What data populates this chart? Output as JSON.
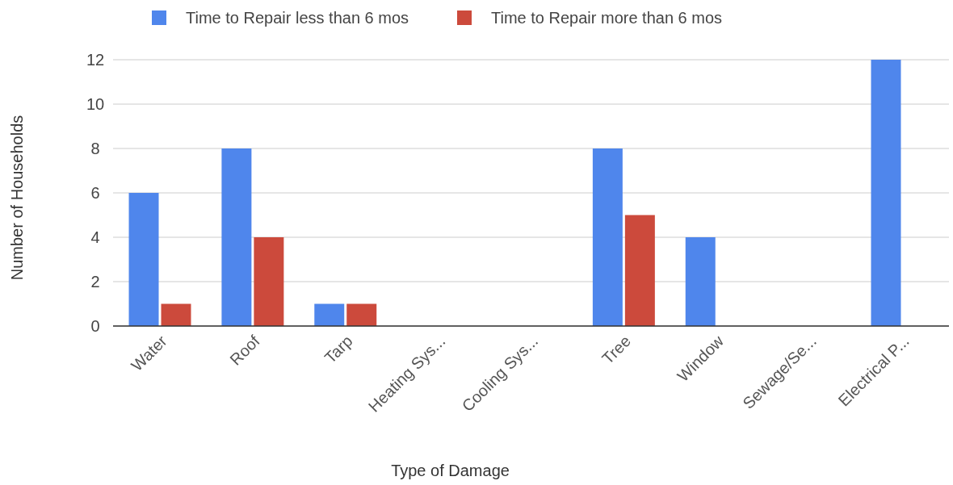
{
  "chart_data": {
    "type": "bar",
    "xlabel": "Type of Damage",
    "ylabel": "Number of Households",
    "categories": [
      "Water",
      "Roof",
      "Tarp",
      "Heating Sys...",
      "Cooling Sys...",
      "Tree",
      "Window",
      "Sewage/Se...",
      "Electrical P..."
    ],
    "series": [
      {
        "name": "Time to Repair less than 6 mos",
        "color": "#4f86ec",
        "values": [
          6,
          8,
          1,
          0,
          0,
          8,
          4,
          0,
          12
        ]
      },
      {
        "name": "Time to Repair more than 6 mos",
        "color": "#cc4a3c",
        "values": [
          1,
          4,
          1,
          0,
          0,
          5,
          0,
          0,
          0
        ]
      }
    ],
    "ylim": [
      0,
      12
    ],
    "yticks": [
      0,
      2,
      4,
      6,
      8,
      10,
      12
    ],
    "grid": "y",
    "legend": "top"
  }
}
